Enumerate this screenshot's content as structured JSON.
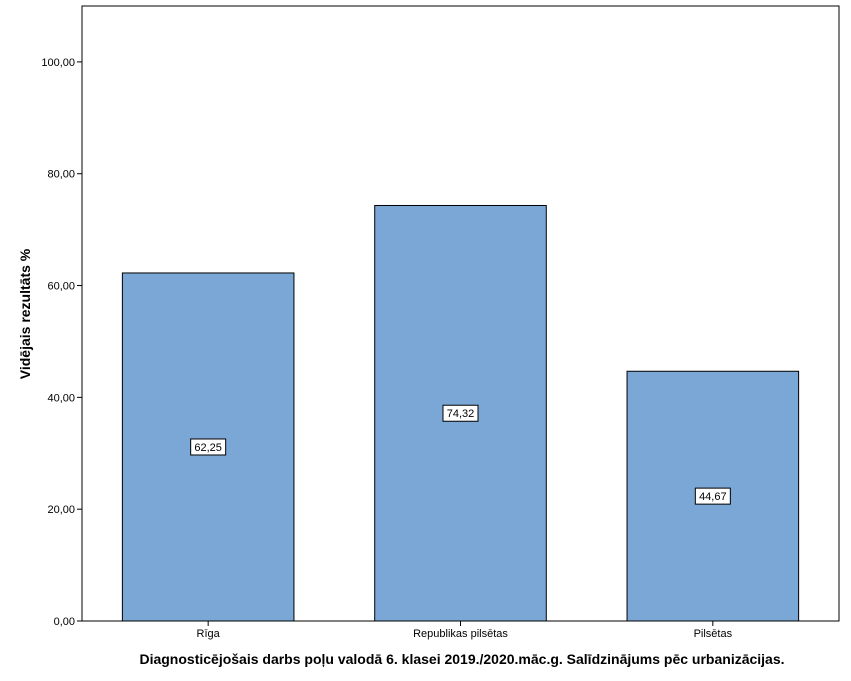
{
  "chart_data": {
    "type": "bar",
    "categories": [
      "Rīga",
      "Republikas pilsētas",
      "Pilsētas"
    ],
    "values": [
      62.25,
      74.32,
      44.67
    ],
    "data_labels": [
      "62,25",
      "74,32",
      "44,67"
    ],
    "title": "",
    "xlabel": "Diagnosticējošais darbs poļu valodā 6. klasei 2019./2020.māc.g. Salīdzinājums pēc urbanizācijas.",
    "ylabel": "Vidējais rezultāts %",
    "ylim": [
      0,
      110
    ],
    "yticks": [
      0,
      20,
      40,
      60,
      80,
      100
    ],
    "ytick_labels": [
      "0,00",
      "20,00",
      "40,00",
      "60,00",
      "80,00",
      "100,00"
    ],
    "bar_color": "#7ba7d6",
    "grid": false,
    "legend": "none"
  }
}
